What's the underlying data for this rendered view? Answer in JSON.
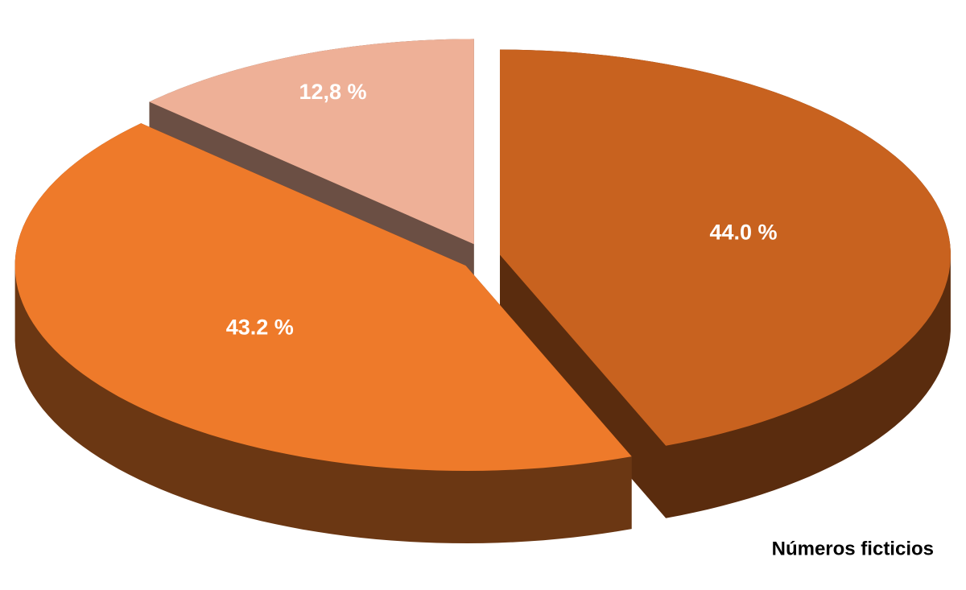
{
  "chart_data": {
    "type": "pie",
    "values": [
      44.0,
      43.2,
      12.8
    ],
    "value_labels": [
      "44.0 %",
      "43.2 %",
      "12,8 %"
    ],
    "colors": [
      "#c8621f",
      "#ee7a2a",
      "#eeb097"
    ],
    "annotation": "Números ficticios"
  }
}
